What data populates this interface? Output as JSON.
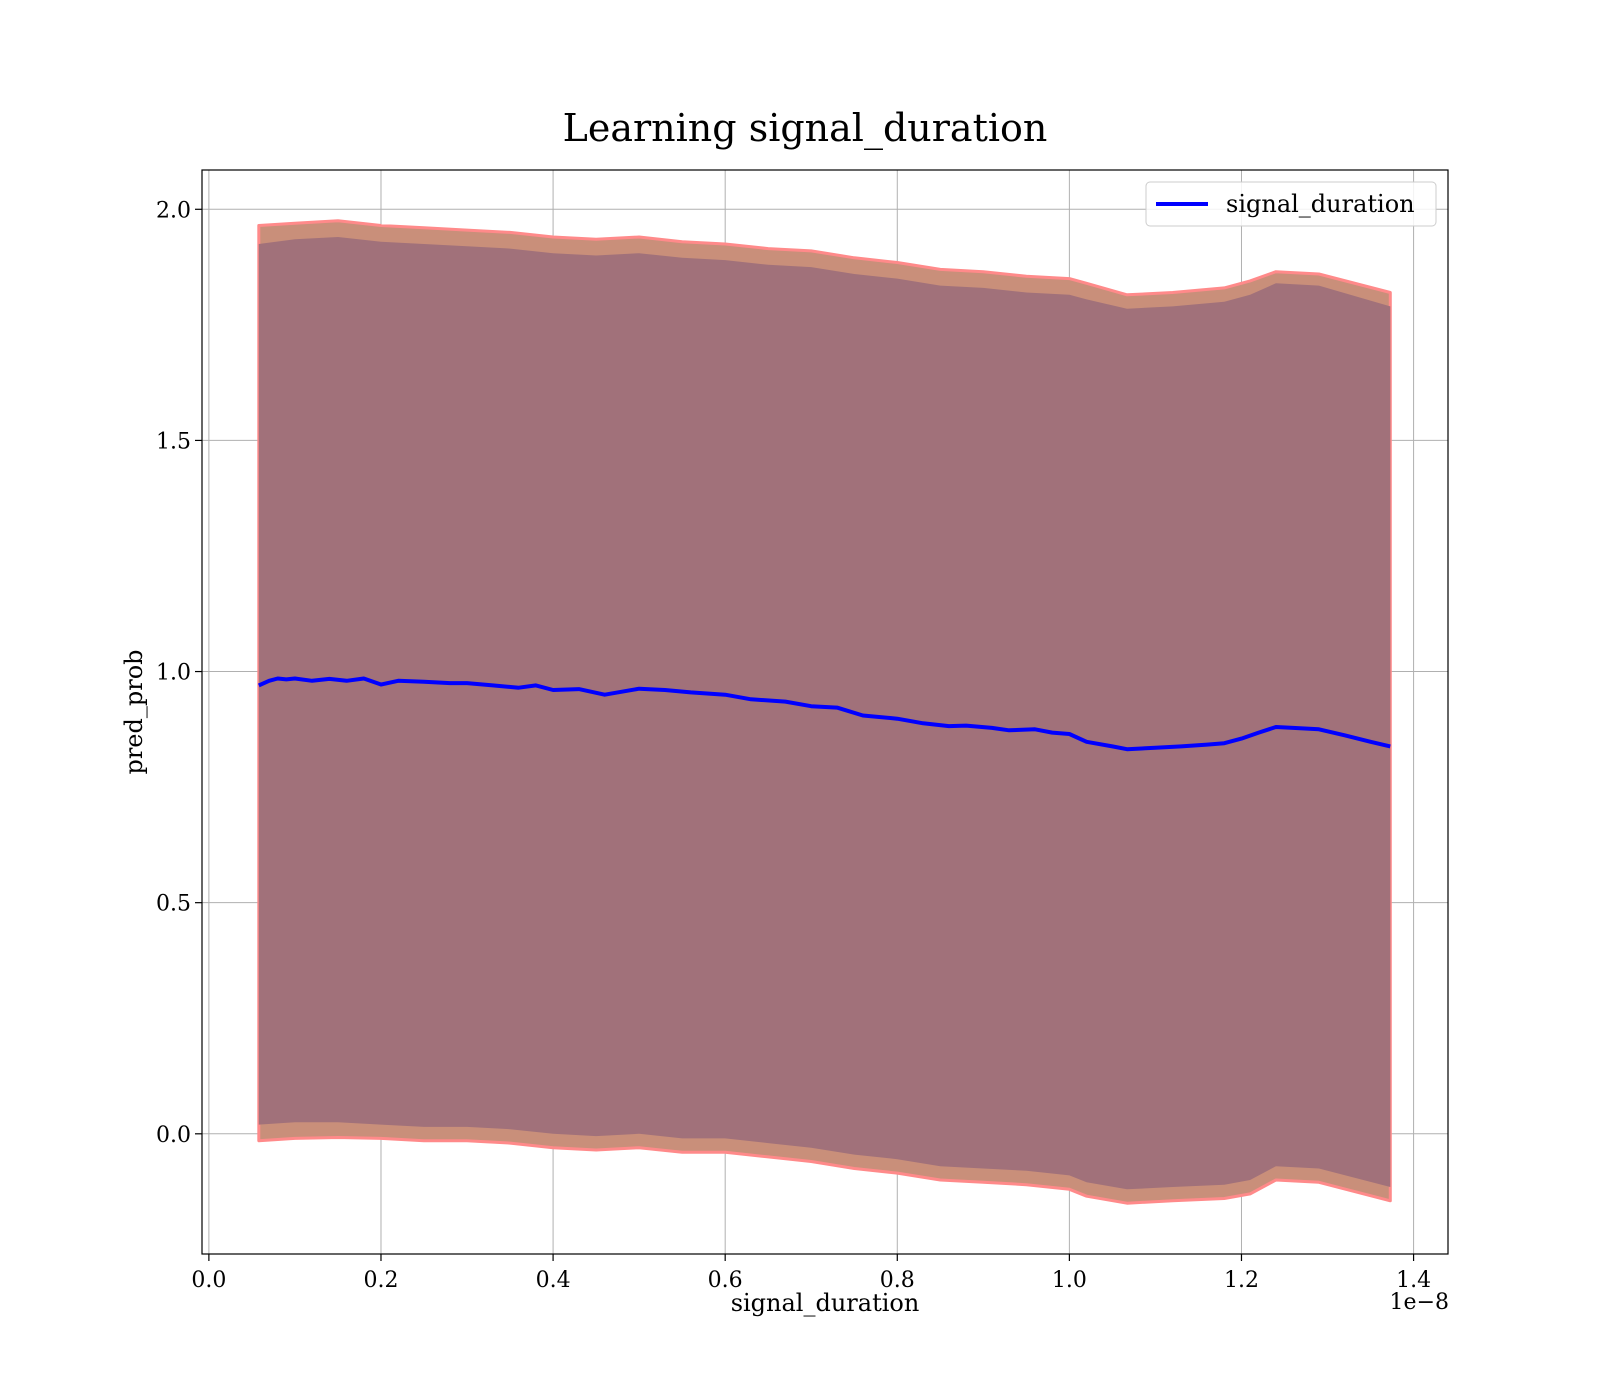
{
  "chart_data": {
    "type": "line",
    "title": "Learning signal_duration",
    "xlabel": "signal_duration",
    "ylabel": "pred_prob",
    "x_offset_label": "1e−8",
    "xlim": [
      -0.008,
      1.44
    ],
    "ylim": [
      -0.26,
      2.085
    ],
    "x_ticks": [
      0.0,
      0.2,
      0.4,
      0.6,
      0.8,
      1.0,
      1.2,
      1.4
    ],
    "x_tick_labels": [
      "0.0",
      "0.2",
      "0.4",
      "0.6",
      "0.8",
      "1.0",
      "1.2",
      "1.4"
    ],
    "y_ticks": [
      0.0,
      0.5,
      1.0,
      1.5,
      2.0
    ],
    "y_tick_labels": [
      "0.0",
      "0.5",
      "1.0",
      "1.5",
      "2.0"
    ],
    "grid": true,
    "legend_position": "top-right",
    "series": [
      {
        "name": "signal_duration",
        "color": "#0000ff",
        "x": [
          0.058,
          0.07,
          0.08,
          0.09,
          0.1,
          0.12,
          0.14,
          0.16,
          0.18,
          0.2,
          0.22,
          0.25,
          0.28,
          0.3,
          0.33,
          0.36,
          0.38,
          0.4,
          0.43,
          0.46,
          0.5,
          0.53,
          0.56,
          0.6,
          0.63,
          0.67,
          0.7,
          0.73,
          0.76,
          0.8,
          0.83,
          0.86,
          0.88,
          0.91,
          0.93,
          0.96,
          0.98,
          1.0,
          1.02,
          1.05,
          1.067,
          1.1,
          1.13,
          1.16,
          1.18,
          1.2,
          1.22,
          1.24,
          1.26,
          1.29,
          1.32,
          1.35,
          1.373
        ],
        "y": [
          0.97,
          0.98,
          0.985,
          0.983,
          0.985,
          0.98,
          0.984,
          0.98,
          0.985,
          0.972,
          0.98,
          0.978,
          0.975,
          0.975,
          0.97,
          0.965,
          0.97,
          0.96,
          0.962,
          0.95,
          0.963,
          0.96,
          0.955,
          0.95,
          0.94,
          0.935,
          0.925,
          0.922,
          0.905,
          0.898,
          0.888,
          0.882,
          0.883,
          0.878,
          0.873,
          0.875,
          0.868,
          0.865,
          0.848,
          0.838,
          0.832,
          0.835,
          0.838,
          0.842,
          0.845,
          0.855,
          0.868,
          0.88,
          0.878,
          0.875,
          0.862,
          0.848,
          0.838
        ]
      }
    ],
    "bands": [
      {
        "kind": "outer",
        "color": "#c98f7a",
        "edge_color": "#ff8a8a",
        "x": [
          0.058,
          0.1,
          0.15,
          0.2,
          0.25,
          0.3,
          0.35,
          0.4,
          0.45,
          0.5,
          0.55,
          0.6,
          0.65,
          0.7,
          0.75,
          0.8,
          0.85,
          0.9,
          0.95,
          1.0,
          1.02,
          1.067,
          1.12,
          1.18,
          1.21,
          1.24,
          1.29,
          1.373
        ],
        "upper": [
          1.965,
          1.97,
          1.975,
          1.965,
          1.96,
          1.955,
          1.95,
          1.94,
          1.935,
          1.94,
          1.93,
          1.925,
          1.915,
          1.91,
          1.895,
          1.885,
          1.87,
          1.865,
          1.855,
          1.85,
          1.84,
          1.815,
          1.82,
          1.83,
          1.845,
          1.865,
          1.86,
          1.82
        ],
        "lower": [
          -0.015,
          -0.01,
          -0.008,
          -0.01,
          -0.015,
          -0.015,
          -0.02,
          -0.03,
          -0.035,
          -0.03,
          -0.04,
          -0.04,
          -0.05,
          -0.06,
          -0.075,
          -0.085,
          -0.1,
          -0.105,
          -0.11,
          -0.12,
          -0.135,
          -0.15,
          -0.145,
          -0.14,
          -0.13,
          -0.1,
          -0.105,
          -0.145
        ]
      },
      {
        "kind": "inner",
        "color": "#a1717a",
        "x": [
          0.058,
          0.1,
          0.15,
          0.2,
          0.25,
          0.3,
          0.35,
          0.4,
          0.45,
          0.5,
          0.55,
          0.6,
          0.65,
          0.7,
          0.75,
          0.8,
          0.85,
          0.9,
          0.95,
          1.0,
          1.02,
          1.067,
          1.12,
          1.18,
          1.21,
          1.24,
          1.29,
          1.373
        ],
        "upper": [
          1.925,
          1.935,
          1.94,
          1.93,
          1.925,
          1.92,
          1.915,
          1.905,
          1.9,
          1.905,
          1.895,
          1.89,
          1.88,
          1.875,
          1.86,
          1.85,
          1.835,
          1.83,
          1.82,
          1.815,
          1.805,
          1.785,
          1.79,
          1.8,
          1.815,
          1.84,
          1.835,
          1.79
        ],
        "lower": [
          0.02,
          0.025,
          0.025,
          0.02,
          0.015,
          0.015,
          0.01,
          0.0,
          -0.005,
          0.0,
          -0.01,
          -0.01,
          -0.02,
          -0.03,
          -0.045,
          -0.055,
          -0.07,
          -0.075,
          -0.08,
          -0.09,
          -0.105,
          -0.12,
          -0.115,
          -0.11,
          -0.1,
          -0.07,
          -0.075,
          -0.115
        ]
      }
    ]
  }
}
